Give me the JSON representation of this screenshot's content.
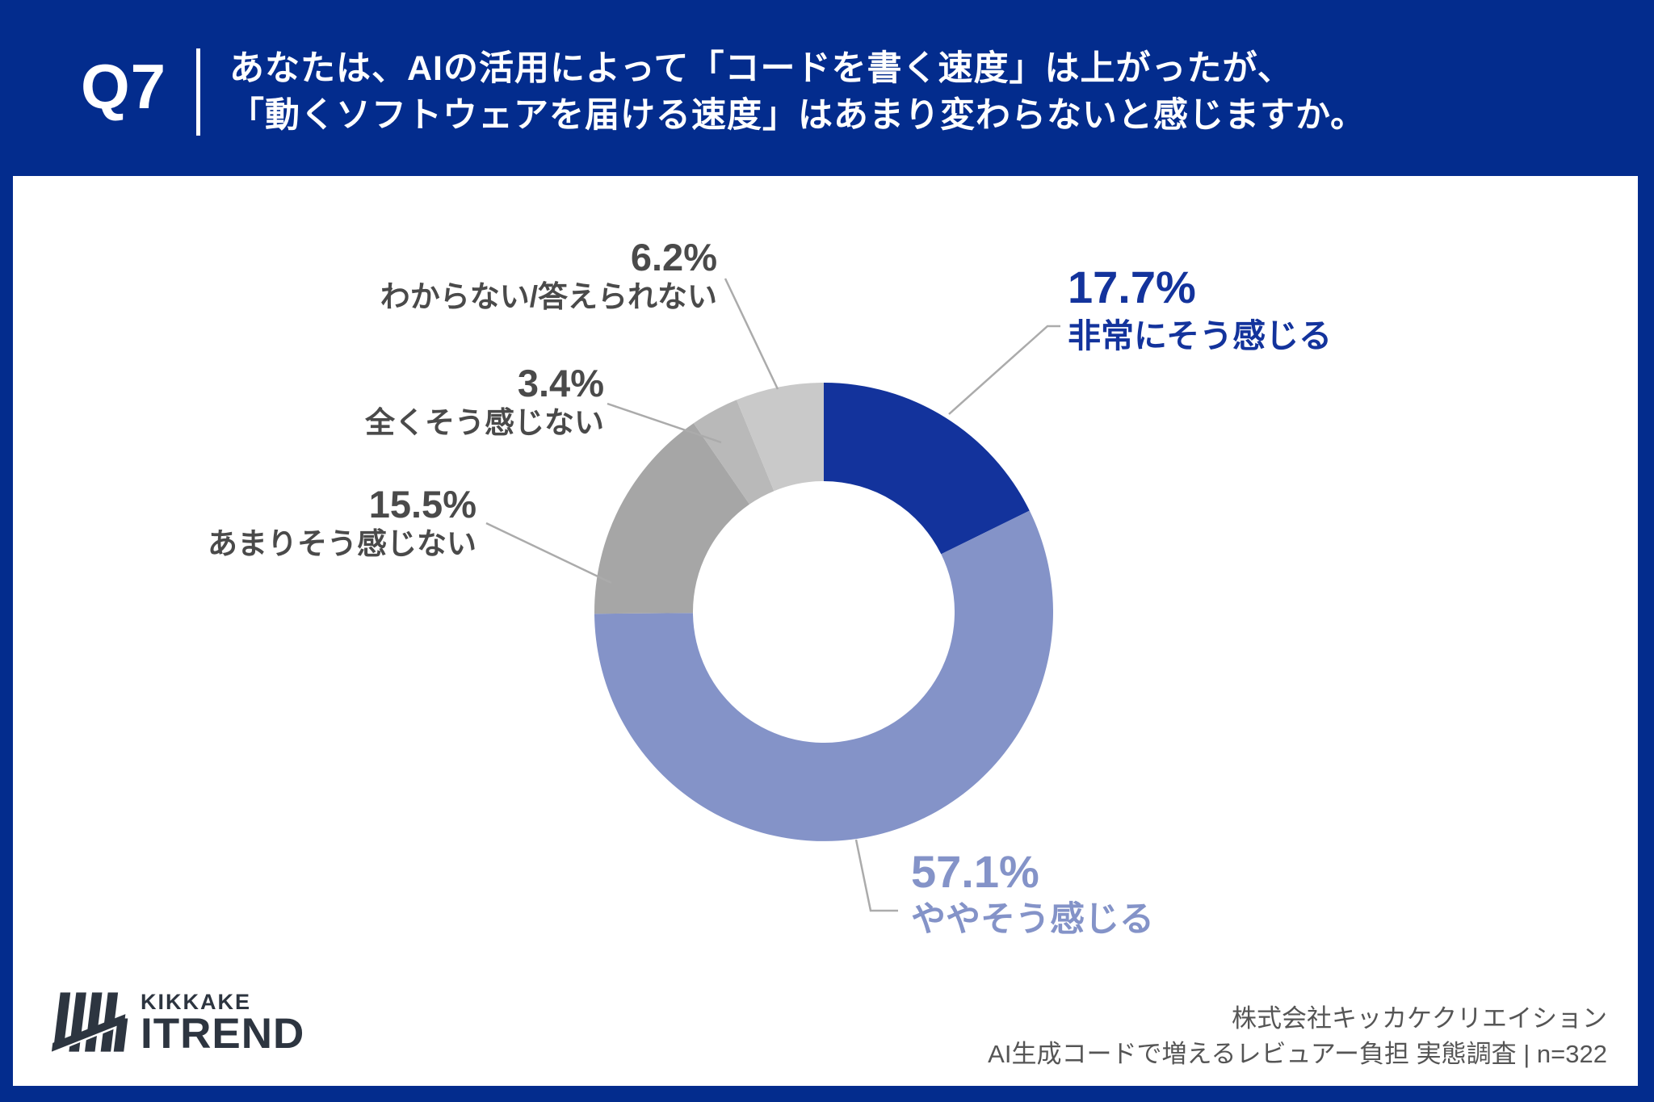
{
  "header": {
    "question_number": "Q7",
    "question_line1": "あなたは、AIの活用によって「コードを書く速度」は上がったが、",
    "question_line2": "「動くソフトウェアを届ける速度」はあまり変わらないと感じますか。"
  },
  "chart_data": {
    "type": "pie",
    "subtype": "donut",
    "direction": "clockwise",
    "start_angle_deg": 0,
    "inner_radius_ratio": 0.57,
    "unit": "%",
    "sample_note": "n=322",
    "segments": [
      {
        "label": "非常にそう感じる",
        "value": 17.7,
        "pct_label": "17.7%",
        "color": "#13339C",
        "label_color": "#13339C"
      },
      {
        "label": "ややそう感じる",
        "value": 57.1,
        "pct_label": "57.1%",
        "color": "#8493C8",
        "label_color": "#8493C8"
      },
      {
        "label": "あまりそう感じない",
        "value": 15.5,
        "pct_label": "15.5%",
        "color": "#A6A6A6",
        "label_color": "#4A4A4A"
      },
      {
        "label": "全くそう感じない",
        "value": 3.4,
        "pct_label": "3.4%",
        "color": "#B9B9B9",
        "label_color": "#4A4A4A"
      },
      {
        "label": "わからない/答えられない",
        "value": 6.2,
        "pct_label": "6.2%",
        "color": "#C9C9C9",
        "label_color": "#4A4A4A"
      }
    ]
  },
  "footer": {
    "logo_line1": "KIKKAKE",
    "logo_line2": "ITREND",
    "company": "株式会社キッカケクリエイション",
    "survey_note": "AI生成コードで増えるレビュアー負担 実態調査 | n=322"
  },
  "colors": {
    "frame_blue": "#032C8D",
    "leader_line": "#ABABAB",
    "callout_gray": "#4A4A4A",
    "footer_text": "#555555",
    "logo_color": "#2D3540"
  }
}
